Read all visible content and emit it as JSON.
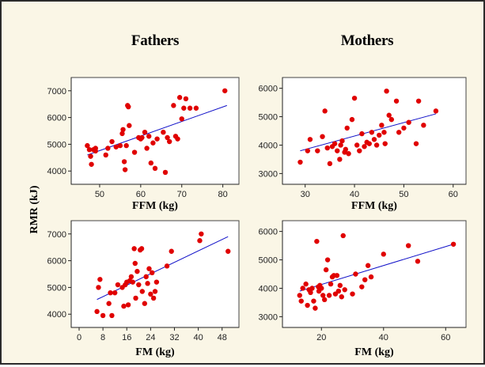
{
  "figure": {
    "column_titles": [
      "Fathers",
      "Mothers"
    ],
    "y_axis_title": "RMR (kJ)",
    "colors": {
      "background": "#faf6e6",
      "point": "#e00000",
      "fit_line": "#1010c8"
    }
  },
  "chart_data": [
    {
      "type": "scatter",
      "panel": "fathers-ffm",
      "title": "Fathers",
      "xlabel": "FFM (kg)",
      "ylabel": "RMR (kJ)",
      "xlim": [
        45,
        82
      ],
      "ylim": [
        3800,
        7200
      ],
      "xticks": [
        50,
        60,
        70,
        80
      ],
      "yticks": [
        4000,
        5000,
        6000,
        7000
      ],
      "fit_line": {
        "x": [
          47,
          81
        ],
        "y": [
          4600,
          6450
        ]
      },
      "points": [
        [
          47,
          4950
        ],
        [
          47.5,
          4800
        ],
        [
          47.8,
          4550
        ],
        [
          48,
          4250
        ],
        [
          48.5,
          4800
        ],
        [
          49,
          4850
        ],
        [
          49,
          4750
        ],
        [
          51.5,
          4600
        ],
        [
          52,
          4850
        ],
        [
          53,
          5100
        ],
        [
          54,
          4900
        ],
        [
          55,
          4950
        ],
        [
          55.5,
          5400
        ],
        [
          55.7,
          5550
        ],
        [
          56,
          4350
        ],
        [
          56.2,
          4050
        ],
        [
          56.5,
          4950
        ],
        [
          56.8,
          6450
        ],
        [
          57,
          6400
        ],
        [
          57.2,
          5700
        ],
        [
          58.5,
          4700
        ],
        [
          59.5,
          5250
        ],
        [
          60,
          5200
        ],
        [
          60.3,
          5250
        ],
        [
          61,
          5450
        ],
        [
          61.5,
          4850
        ],
        [
          62,
          5300
        ],
        [
          62.5,
          4300
        ],
        [
          63,
          5050
        ],
        [
          63.5,
          4100
        ],
        [
          64,
          5200
        ],
        [
          65.5,
          5450
        ],
        [
          66,
          3950
        ],
        [
          66.5,
          5250
        ],
        [
          67,
          5100
        ],
        [
          68,
          6450
        ],
        [
          68.5,
          5300
        ],
        [
          69,
          5200
        ],
        [
          69.5,
          6750
        ],
        [
          70,
          5950
        ],
        [
          70.5,
          6350
        ],
        [
          71,
          6700
        ],
        [
          72,
          6350
        ],
        [
          73.5,
          6350
        ],
        [
          80.5,
          7000
        ]
      ]
    },
    {
      "type": "scatter",
      "panel": "mothers-ffm",
      "title": "Mothers",
      "xlabel": "FFM (kg)",
      "ylabel": "RMR (kJ)",
      "xlim": [
        27,
        61
      ],
      "ylim": [
        2900,
        6100
      ],
      "xticks": [
        30,
        40,
        50,
        60
      ],
      "yticks": [
        3000,
        4000,
        5000,
        6000
      ],
      "fit_line": {
        "x": [
          29,
          56.5
        ],
        "y": [
          3800,
          5100
        ]
      },
      "points": [
        [
          29,
          3400
        ],
        [
          30.5,
          3800
        ],
        [
          31,
          4200
        ],
        [
          32.5,
          3800
        ],
        [
          33.5,
          4300
        ],
        [
          34,
          5200
        ],
        [
          34.5,
          3900
        ],
        [
          35,
          3350
        ],
        [
          35.5,
          3950
        ],
        [
          36,
          4050
        ],
        [
          36.5,
          3800
        ],
        [
          37,
          3500
        ],
        [
          37.2,
          4000
        ],
        [
          37.5,
          4150
        ],
        [
          38,
          3750
        ],
        [
          38.2,
          3850
        ],
        [
          38.5,
          4600
        ],
        [
          38.8,
          3700
        ],
        [
          39.5,
          4900
        ],
        [
          40,
          5650
        ],
        [
          40.5,
          4000
        ],
        [
          41,
          3800
        ],
        [
          41.5,
          4400
        ],
        [
          42,
          3950
        ],
        [
          42.5,
          4100
        ],
        [
          43,
          4050
        ],
        [
          43.5,
          4450
        ],
        [
          44,
          4200
        ],
        [
          44.5,
          4000
        ],
        [
          45,
          4350
        ],
        [
          45.5,
          4700
        ],
        [
          46,
          4450
        ],
        [
          46.2,
          4050
        ],
        [
          46.5,
          5900
        ],
        [
          47,
          5050
        ],
        [
          47.5,
          4900
        ],
        [
          48.5,
          5550
        ],
        [
          49,
          4450
        ],
        [
          50,
          4600
        ],
        [
          51,
          4800
        ],
        [
          52.5,
          4050
        ],
        [
          53,
          5550
        ],
        [
          54,
          4700
        ],
        [
          56.5,
          5200
        ]
      ]
    },
    {
      "type": "scatter",
      "panel": "fathers-fm",
      "title": "Fathers",
      "xlabel": "FM (kg)",
      "ylabel": "RMR (kJ)",
      "xlim": [
        0,
        51
      ],
      "ylim": [
        3800,
        7200
      ],
      "xticks": [
        0,
        8,
        16,
        24,
        32,
        40,
        48
      ],
      "yticks": [
        4000,
        5000,
        6000,
        7000
      ],
      "fit_line": {
        "x": [
          6,
          50
        ],
        "y": [
          4550,
          6900
        ]
      },
      "points": [
        [
          6,
          4100
        ],
        [
          6.5,
          5000
        ],
        [
          7,
          5300
        ],
        [
          8,
          3950
        ],
        [
          10,
          4400
        ],
        [
          10.5,
          4800
        ],
        [
          11,
          3950
        ],
        [
          12,
          4800
        ],
        [
          13,
          5100
        ],
        [
          14.5,
          5000
        ],
        [
          15,
          4300
        ],
        [
          15.5,
          5100
        ],
        [
          16,
          5200
        ],
        [
          16.5,
          4350
        ],
        [
          17,
          5250
        ],
        [
          17.5,
          5400
        ],
        [
          18,
          5200
        ],
        [
          18.5,
          6450
        ],
        [
          18.8,
          5900
        ],
        [
          19,
          4600
        ],
        [
          19.5,
          5600
        ],
        [
          20,
          5100
        ],
        [
          20.5,
          6400
        ],
        [
          21,
          6450
        ],
        [
          21.2,
          4850
        ],
        [
          22,
          4400
        ],
        [
          22.5,
          5400
        ],
        [
          23,
          5150
        ],
        [
          23.5,
          5700
        ],
        [
          24,
          4750
        ],
        [
          24.5,
          5550
        ],
        [
          25,
          4600
        ],
        [
          25.5,
          4850
        ],
        [
          26,
          5200
        ],
        [
          29.5,
          5800
        ],
        [
          31,
          6350
        ],
        [
          40.5,
          6750
        ],
        [
          41,
          7000
        ],
        [
          50,
          6350
        ]
      ]
    },
    {
      "type": "scatter",
      "panel": "mothers-fm",
      "title": "Mothers",
      "xlabel": "FM (kg)",
      "ylabel": "RMR (kJ)",
      "xlim": [
        10,
        64
      ],
      "ylim": [
        2900,
        6100
      ],
      "xticks": [
        20,
        40,
        60
      ],
      "yticks": [
        3000,
        4000,
        5000,
        6000
      ],
      "fit_line": {
        "x": [
          13,
          62.5
        ],
        "y": [
          3900,
          5550
        ]
      },
      "points": [
        [
          13,
          3750
        ],
        [
          13.5,
          3550
        ],
        [
          14,
          4000
        ],
        [
          15,
          4150
        ],
        [
          15.5,
          3400
        ],
        [
          16,
          3950
        ],
        [
          16.5,
          3850
        ],
        [
          17,
          4000
        ],
        [
          17.5,
          3550
        ],
        [
          18,
          3300
        ],
        [
          18.5,
          5650
        ],
        [
          19,
          4050
        ],
        [
          19.2,
          3900
        ],
        [
          19.5,
          4100
        ],
        [
          20,
          4000
        ],
        [
          20.5,
          3750
        ],
        [
          21,
          3600
        ],
        [
          21.5,
          4650
        ],
        [
          22,
          5000
        ],
        [
          22.5,
          3750
        ],
        [
          23,
          4150
        ],
        [
          23.5,
          4400
        ],
        [
          24,
          4450
        ],
        [
          24.5,
          3800
        ],
        [
          25,
          4450
        ],
        [
          25.5,
          3900
        ],
        [
          26,
          4100
        ],
        [
          26.5,
          3700
        ],
        [
          27,
          5850
        ],
        [
          27.5,
          3950
        ],
        [
          30,
          3800
        ],
        [
          31,
          4500
        ],
        [
          33,
          4050
        ],
        [
          34,
          4300
        ],
        [
          35,
          4800
        ],
        [
          36,
          4400
        ],
        [
          40,
          5200
        ],
        [
          48,
          5500
        ],
        [
          51,
          4950
        ],
        [
          62.5,
          5550
        ]
      ]
    }
  ]
}
